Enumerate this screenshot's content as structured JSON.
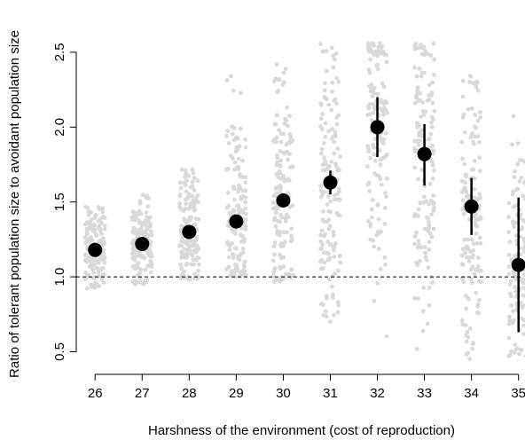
{
  "chart_data": {
    "type": "scatter",
    "title": "",
    "xlabel": "Harshness of the environment (cost of reproduction)",
    "ylabel": "Ratio of tolerant population size to avoidant population size",
    "x_ticks": [
      26,
      27,
      28,
      29,
      30,
      31,
      32,
      33,
      34,
      35
    ],
    "y_ticks": [
      "0.5",
      "1.0",
      "1.5",
      "2.0",
      "2.5"
    ],
    "xlim": [
      25.6,
      35.1
    ],
    "ylim": [
      0.42,
      2.6
    ],
    "reference_line": {
      "y": 1.0,
      "style": "dashed"
    },
    "grid": false,
    "colors": {
      "raw_points": "#d9d9d9",
      "means": "#000000"
    },
    "raw_points_spread": [
      {
        "x": 26,
        "min": 0.92,
        "max": 1.47
      },
      {
        "x": 27,
        "min": 0.95,
        "max": 1.55
      },
      {
        "x": 28,
        "min": 0.98,
        "max": 1.83
      },
      {
        "x": 29,
        "min": 1.0,
        "max": 2.34
      },
      {
        "x": 30,
        "min": 0.96,
        "max": 2.5
      },
      {
        "x": 31,
        "min": 0.7,
        "max": 2.56
      },
      {
        "x": 32,
        "min": 0.45,
        "max": 2.56
      },
      {
        "x": 33,
        "min": 0.45,
        "max": 2.56
      },
      {
        "x": 34,
        "min": 0.45,
        "max": 2.35
      },
      {
        "x": 35,
        "min": 0.47,
        "max": 2.08
      }
    ],
    "series": [
      {
        "x": [
          26,
          27,
          28,
          29,
          30,
          31,
          32,
          33,
          34,
          35
        ],
        "mean": [
          1.18,
          1.22,
          1.3,
          1.37,
          1.51,
          1.63,
          2.0,
          1.82,
          1.47,
          1.08
        ],
        "lower": [
          1.16,
          1.2,
          1.28,
          1.35,
          1.47,
          1.55,
          1.8,
          1.61,
          1.28,
          0.63
        ],
        "upper": [
          1.2,
          1.24,
          1.32,
          1.39,
          1.55,
          1.71,
          2.2,
          2.02,
          1.66,
          1.53
        ]
      }
    ]
  }
}
